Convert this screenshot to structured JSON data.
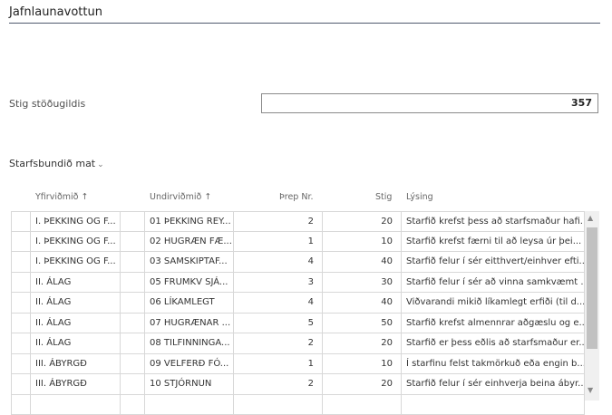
{
  "title": "Jafnlaunavottun",
  "field": {
    "label": "Stig stöðugildis",
    "value": "357"
  },
  "section": {
    "label": "Starfsbundið mat",
    "chevron": "chevron-down-icon"
  },
  "table": {
    "headers": [
      "Yfirviðmið ↑",
      "Undirviðmið ↑",
      "Þrep Nr.",
      "Stig",
      "Lýsing"
    ],
    "rows": [
      [
        "I. ÞEKKING OG F...",
        "01 ÞEKKING REY...",
        "2",
        "20",
        "Starfið krefst þess að starfsmaður hafi..."
      ],
      [
        "I. ÞEKKING OG F...",
        "02 HUGRÆN FÆ...",
        "1",
        "10",
        "Starfið krefst færni til að leysa úr þei..."
      ],
      [
        "I. ÞEKKING OG F...",
        "03 SAMSKIPTAF...",
        "4",
        "40",
        "Starfið felur í sér eitthvert/einhver efti..."
      ],
      [
        "II. ÁLAG",
        "05 FRUMKV SJÁ...",
        "3",
        "30",
        "Starfið felur í sér að vinna samkvæmt ..."
      ],
      [
        "II. ÁLAG",
        "06 LÍKAMLEGT",
        "4",
        "40",
        "Viðvarandi mikið líkamlegt erfiði (til d..."
      ],
      [
        "II. ÁLAG",
        "07 HUGRÆNAR ...",
        "5",
        "50",
        "Starfið krefst almennrar aðgæslu og e..."
      ],
      [
        "II. ÁLAG",
        "08 TILFINNINGA...",
        "2",
        "20",
        "Starfið er þess eðlis að starfsmaður er..."
      ],
      [
        "III. ÁBYRGÐ",
        "09 VELFERÐ  FÓ...",
        "1",
        "10",
        "Í starfinu felst takmörkuð eða engin b..."
      ],
      [
        "III. ÁBYRGÐ",
        "10 STJÓRNUN",
        "2",
        "20",
        "Starfið felur í sér einhverja beina ábyr..."
      ]
    ]
  }
}
